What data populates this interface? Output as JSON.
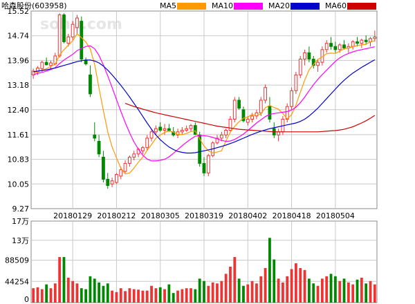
{
  "header": {
    "title": "哈森股份(603958)",
    "legend": [
      {
        "label": "MA5",
        "color": "#ff9900"
      },
      {
        "label": "MA10",
        "color": "#ff00ff"
      },
      {
        "label": "MA20",
        "color": "#0000cc"
      },
      {
        "label": "MA60",
        "color": "#cc0000"
      }
    ],
    "watermark": "sohu.com"
  },
  "colors": {
    "up": "#ee3333",
    "down": "#008800",
    "grid": "#c8c8c8",
    "frame": "#888888"
  },
  "chart_data": [
    {
      "type": "candlestick",
      "x_tick_labels": [
        "20180129",
        "20180212",
        "20180305",
        "20180319",
        "20180402",
        "20180418",
        "20180504"
      ],
      "x_tick_index": [
        9,
        19,
        29,
        39,
        49,
        59,
        69
      ],
      "y_tick_labels": [
        "15.52",
        "14.74",
        "13.96",
        "13.18",
        "12.40",
        "11.61",
        "10.83",
        "10.05",
        "9.27"
      ],
      "ylim": [
        9.27,
        15.52
      ],
      "grid": true,
      "ohlc": [
        [
          13.5,
          13.7,
          13.38,
          13.62
        ],
        [
          13.6,
          13.78,
          13.5,
          13.72
        ],
        [
          13.7,
          13.95,
          13.6,
          13.9
        ],
        [
          13.9,
          14.05,
          13.8,
          13.82
        ],
        [
          13.8,
          13.95,
          13.7,
          13.88
        ],
        [
          13.85,
          14.2,
          13.8,
          14.1
        ],
        [
          14.1,
          15.45,
          14.05,
          15.4
        ],
        [
          15.4,
          15.45,
          14.5,
          14.55
        ],
        [
          14.5,
          14.8,
          14.4,
          14.7
        ],
        [
          14.7,
          15.2,
          14.6,
          15.1
        ],
        [
          15.0,
          15.4,
          14.8,
          15.3
        ],
        [
          15.2,
          15.35,
          13.9,
          14.0
        ],
        [
          13.95,
          14.05,
          13.8,
          13.85
        ],
        [
          13.5,
          13.8,
          12.8,
          12.9
        ],
        [
          11.6,
          12.0,
          11.4,
          11.5
        ],
        [
          11.4,
          11.6,
          10.9,
          11.0
        ],
        [
          10.9,
          11.1,
          10.1,
          10.2
        ],
        [
          10.2,
          10.4,
          9.9,
          10.0
        ],
        [
          10.05,
          10.25,
          9.95,
          10.15
        ],
        [
          10.1,
          10.4,
          10.05,
          10.35
        ],
        [
          10.3,
          10.6,
          10.2,
          10.5
        ],
        [
          10.45,
          10.8,
          10.4,
          10.7
        ],
        [
          10.7,
          10.95,
          10.6,
          10.9
        ],
        [
          10.9,
          11.1,
          10.8,
          11.0
        ],
        [
          11.0,
          11.2,
          10.9,
          11.15
        ],
        [
          11.1,
          11.25,
          11.0,
          11.2
        ],
        [
          11.2,
          11.6,
          11.1,
          11.5
        ],
        [
          11.5,
          11.8,
          11.4,
          11.7
        ],
        [
          11.7,
          11.9,
          11.6,
          11.8
        ],
        [
          11.85,
          12.0,
          11.7,
          11.75
        ],
        [
          11.75,
          11.95,
          11.6,
          11.8
        ],
        [
          11.8,
          11.95,
          11.7,
          11.72
        ],
        [
          11.7,
          11.85,
          11.55,
          11.6
        ],
        [
          11.6,
          11.8,
          11.5,
          11.7
        ],
        [
          11.7,
          11.85,
          11.6,
          11.75
        ],
        [
          11.75,
          11.9,
          11.7,
          11.8
        ],
        [
          11.8,
          11.95,
          11.7,
          11.9
        ],
        [
          11.9,
          12.0,
          11.6,
          11.62
        ],
        [
          11.6,
          11.7,
          10.6,
          10.7
        ],
        [
          10.7,
          10.9,
          10.3,
          10.4
        ],
        [
          10.4,
          11.0,
          10.3,
          10.95
        ],
        [
          10.95,
          11.4,
          10.9,
          11.35
        ],
        [
          11.35,
          11.6,
          11.3,
          11.5
        ],
        [
          11.5,
          11.7,
          11.4,
          11.6
        ],
        [
          11.6,
          11.8,
          11.5,
          11.75
        ],
        [
          11.75,
          12.2,
          11.7,
          12.1
        ],
        [
          12.1,
          12.8,
          12.0,
          12.7
        ],
        [
          12.7,
          12.8,
          12.4,
          12.45
        ],
        [
          12.4,
          12.5,
          12.0,
          12.05
        ],
        [
          12.0,
          12.2,
          11.9,
          12.1
        ],
        [
          12.1,
          12.3,
          12.0,
          12.2
        ],
        [
          12.2,
          12.4,
          12.1,
          12.3
        ],
        [
          12.3,
          12.8,
          12.2,
          12.7
        ],
        [
          12.7,
          13.2,
          12.6,
          13.1
        ],
        [
          12.5,
          12.8,
          12.0,
          12.1
        ],
        [
          11.8,
          12.0,
          11.5,
          11.6
        ],
        [
          11.6,
          11.8,
          11.4,
          11.7
        ],
        [
          11.7,
          12.2,
          11.6,
          12.1
        ],
        [
          12.1,
          12.6,
          12.0,
          12.5
        ],
        [
          12.5,
          13.1,
          12.4,
          13.0
        ],
        [
          13.0,
          13.6,
          12.9,
          13.5
        ],
        [
          13.5,
          14.1,
          13.4,
          14.0
        ],
        [
          14.0,
          14.3,
          13.8,
          14.2
        ],
        [
          14.2,
          14.4,
          13.9,
          14.0
        ],
        [
          14.0,
          14.1,
          13.7,
          13.8
        ],
        [
          13.8,
          14.0,
          13.6,
          13.9
        ],
        [
          13.9,
          14.4,
          13.8,
          14.3
        ],
        [
          14.3,
          14.6,
          14.2,
          14.5
        ],
        [
          14.5,
          14.7,
          14.3,
          14.4
        ],
        [
          14.4,
          14.55,
          14.2,
          14.3
        ],
        [
          14.3,
          14.5,
          14.2,
          14.45
        ],
        [
          14.45,
          14.6,
          14.3,
          14.35
        ],
        [
          14.35,
          14.5,
          14.2,
          14.4
        ],
        [
          14.4,
          14.6,
          14.3,
          14.55
        ],
        [
          14.55,
          14.7,
          14.4,
          14.5
        ],
        [
          14.5,
          14.65,
          14.35,
          14.6
        ],
        [
          14.6,
          14.75,
          14.45,
          14.55
        ],
        [
          14.55,
          14.7,
          14.4,
          14.65
        ],
        [
          14.65,
          14.9,
          14.55,
          14.7
        ]
      ],
      "ma5": [
        13.55,
        13.6,
        13.65,
        13.7,
        13.77,
        13.84,
        14.13,
        14.3,
        14.44,
        14.58,
        14.8,
        14.68,
        14.54,
        14.33,
        13.84,
        13.09,
        12.38,
        11.7,
        11.22,
        10.88,
        10.55,
        10.37,
        10.4,
        10.55,
        10.74,
        10.9,
        11.11,
        11.3,
        11.5,
        11.6,
        11.68,
        11.73,
        11.69,
        11.62,
        11.61,
        11.65,
        11.71,
        11.73,
        11.48,
        11.25,
        11.1,
        11.03,
        11.06,
        11.1,
        11.41,
        11.69,
        11.87,
        12.02,
        12.13,
        12.17,
        12.25,
        12.21,
        12.27,
        12.46,
        12.54,
        12.47,
        12.42,
        12.28,
        12.11,
        12.24,
        12.55,
        12.95,
        13.34,
        13.66,
        13.83,
        13.99,
        14.07,
        14.17,
        14.19,
        14.18,
        14.25,
        14.33,
        14.35,
        14.39,
        14.43,
        14.45,
        14.47,
        14.55,
        14.58
      ],
      "ma10": [
        13.5,
        13.55,
        13.58,
        13.62,
        13.67,
        13.73,
        13.86,
        13.97,
        14.06,
        14.15,
        14.27,
        14.34,
        14.4,
        14.42,
        14.33,
        14.12,
        13.82,
        13.47,
        13.1,
        12.72,
        12.35,
        11.99,
        11.67,
        11.38,
        11.15,
        10.96,
        10.84,
        10.78,
        10.78,
        10.8,
        10.83,
        10.91,
        11.02,
        11.14,
        11.26,
        11.37,
        11.47,
        11.56,
        11.58,
        11.58,
        11.56,
        11.52,
        11.48,
        11.43,
        11.4,
        11.41,
        11.46,
        11.54,
        11.63,
        11.74,
        11.86,
        11.98,
        12.08,
        12.18,
        12.25,
        12.28,
        12.3,
        12.32,
        12.34,
        12.39,
        12.48,
        12.62,
        12.8,
        13.0,
        13.19,
        13.36,
        13.51,
        13.65,
        13.79,
        13.93,
        14.04,
        14.12,
        14.18,
        14.23,
        14.27,
        14.3,
        14.33,
        14.36,
        14.39
      ],
      "ma20": [
        13.6,
        13.62,
        13.64,
        13.66,
        13.69,
        13.72,
        13.76,
        13.8,
        13.84,
        13.88,
        13.92,
        13.95,
        13.97,
        13.97,
        13.94,
        13.88,
        13.78,
        13.65,
        13.5,
        13.34,
        13.17,
        12.99,
        12.8,
        12.6,
        12.4,
        12.19,
        11.98,
        11.78,
        11.6,
        11.45,
        11.33,
        11.22,
        11.14,
        11.08,
        11.05,
        11.03,
        11.03,
        11.04,
        11.07,
        11.1,
        11.13,
        11.16,
        11.2,
        11.24,
        11.28,
        11.33,
        11.38,
        11.44,
        11.5,
        11.56,
        11.62,
        11.67,
        11.72,
        11.76,
        11.8,
        11.83,
        11.86,
        11.89,
        11.92,
        11.95,
        11.98,
        12.03,
        12.1,
        12.2,
        12.32,
        12.45,
        12.6,
        12.75,
        12.9,
        13.05,
        13.2,
        13.33,
        13.45,
        13.56,
        13.65,
        13.74,
        13.82,
        13.9,
        13.98
      ],
      "ma60": [
        null,
        null,
        null,
        null,
        null,
        null,
        null,
        null,
        null,
        null,
        null,
        null,
        null,
        null,
        null,
        null,
        null,
        null,
        null,
        null,
        null,
        12.6,
        12.55,
        12.5,
        12.46,
        12.42,
        12.38,
        12.34,
        12.3,
        12.27,
        12.24,
        12.21,
        12.18,
        12.15,
        12.12,
        12.09,
        12.06,
        12.03,
        12.0,
        11.97,
        11.94,
        11.91,
        11.88,
        11.86,
        11.84,
        11.82,
        11.8,
        11.78,
        11.77,
        11.76,
        11.75,
        11.74,
        11.73,
        11.72,
        11.71,
        11.7,
        11.7,
        11.7,
        11.7,
        11.7,
        11.7,
        11.7,
        11.7,
        11.7,
        11.7,
        11.7,
        11.71,
        11.72,
        11.73,
        11.74,
        11.76,
        11.78,
        11.82,
        11.86,
        11.92,
        11.98,
        12.05,
        12.13,
        12.22
      ]
    },
    {
      "type": "bar",
      "y_tick_labels": [
        "17万",
        "13万",
        "88509",
        "44254",
        "0"
      ],
      "ylim": [
        0,
        170000
      ],
      "grid": true,
      "values": [
        30000,
        32000,
        28000,
        38000,
        30000,
        40000,
        95000,
        95000,
        52000,
        45000,
        40000,
        30000,
        28000,
        55000,
        50000,
        42000,
        35000,
        40000,
        25000,
        22000,
        30000,
        24000,
        30000,
        28000,
        27000,
        25000,
        25000,
        35000,
        30000,
        32000,
        28000,
        38000,
        20000,
        25000,
        28000,
        30000,
        30000,
        28000,
        50000,
        45000,
        35000,
        42000,
        40000,
        45000,
        60000,
        75000,
        95000,
        50000,
        35000,
        38000,
        45000,
        40000,
        55000,
        72000,
        135000,
        90000,
        50000,
        42000,
        55000,
        70000,
        82000,
        72000,
        68000,
        50000,
        40000,
        35000,
        50000,
        55000,
        60000,
        55000,
        45000,
        50000,
        42000,
        38000,
        48000,
        52000,
        40000,
        45000,
        38000
      ]
    }
  ]
}
